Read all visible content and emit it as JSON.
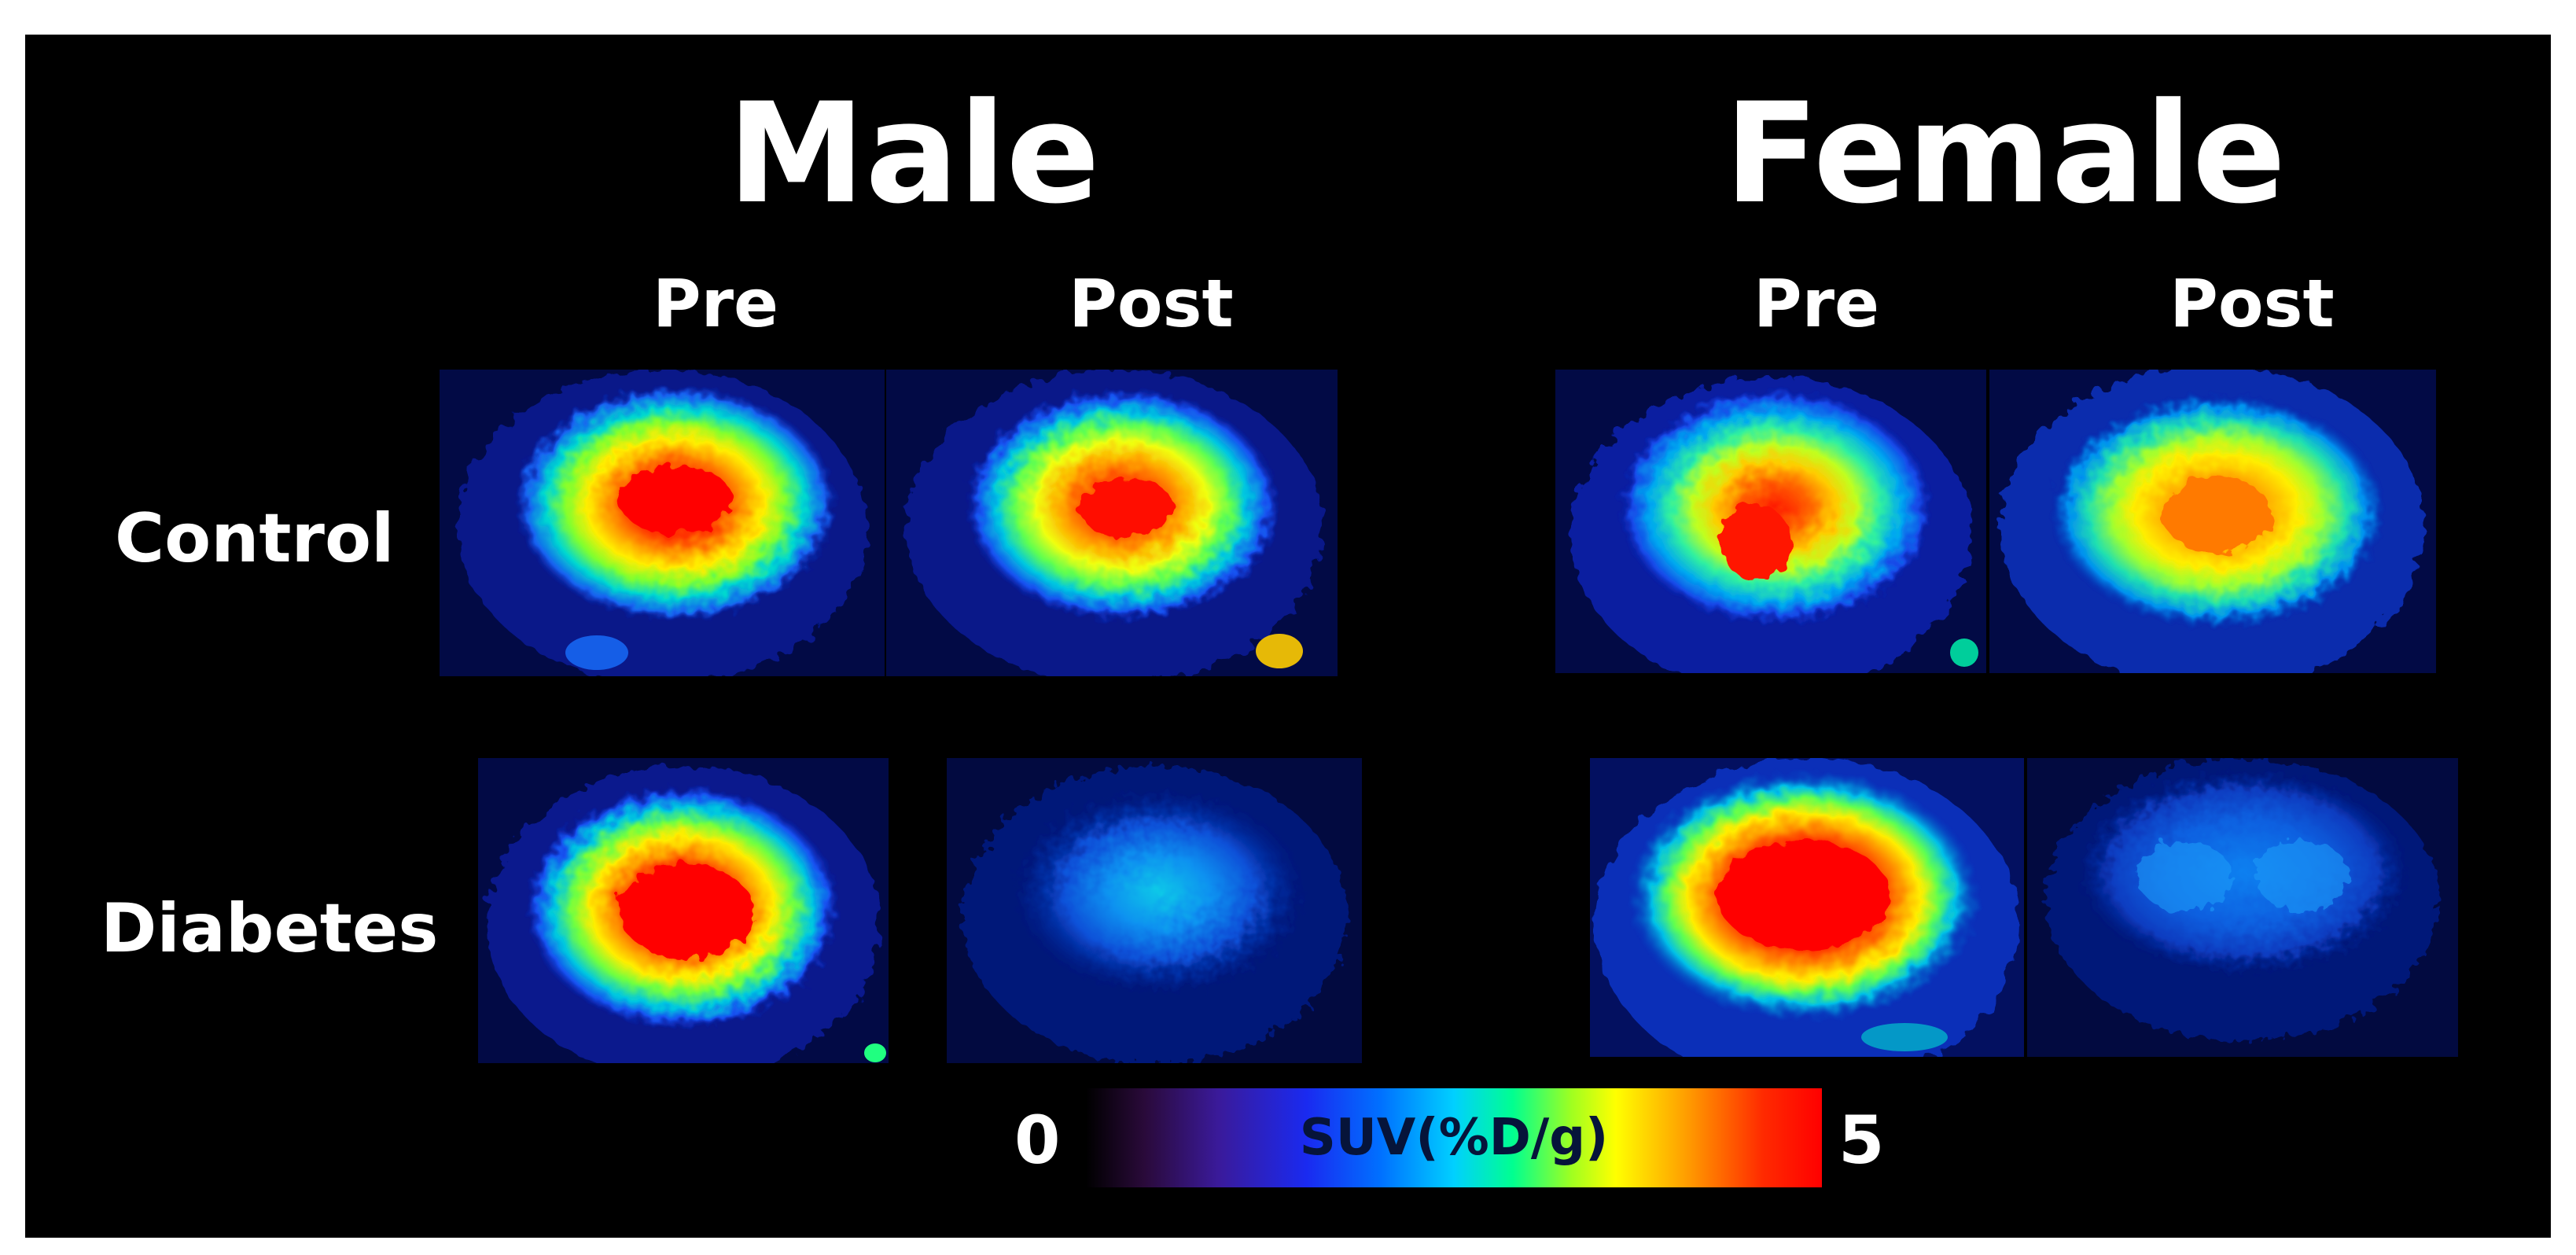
{
  "figure": {
    "sexes": [
      {
        "label": "Male"
      },
      {
        "label": "Female"
      }
    ],
    "timepoints": {
      "male_pre": "Pre",
      "male_post": "Post",
      "female_pre": "Pre",
      "female_post": "Post"
    },
    "groups": {
      "control": "Control",
      "diabetes": "Diabetes"
    },
    "scans": [
      {
        "sex": "Male",
        "group": "Control",
        "time": "Pre",
        "relative_intensity": 0.95
      },
      {
        "sex": "Male",
        "group": "Control",
        "time": "Post",
        "relative_intensity": 0.85
      },
      {
        "sex": "Female",
        "group": "Control",
        "time": "Pre",
        "relative_intensity": 0.82
      },
      {
        "sex": "Female",
        "group": "Control",
        "time": "Post",
        "relative_intensity": 0.7
      },
      {
        "sex": "Male",
        "group": "Diabetes",
        "time": "Pre",
        "relative_intensity": 0.97
      },
      {
        "sex": "Male",
        "group": "Diabetes",
        "time": "Post",
        "relative_intensity": 0.3
      },
      {
        "sex": "Female",
        "group": "Diabetes",
        "time": "Pre",
        "relative_intensity": 0.97
      },
      {
        "sex": "Female",
        "group": "Diabetes",
        "time": "Post",
        "relative_intensity": 0.25
      }
    ],
    "colorbar": {
      "min": "0",
      "max": "5",
      "label": "SUV(%D/g)",
      "colormap": [
        "#000000",
        "#3a1a9a",
        "#1a2af0",
        "#00d0ff",
        "#00ff90",
        "#ffff00",
        "#ff9900",
        "#ff0000"
      ]
    },
    "colors": {
      "background": "#000000",
      "frame": "#ffffff",
      "text": "#ffffff"
    }
  }
}
